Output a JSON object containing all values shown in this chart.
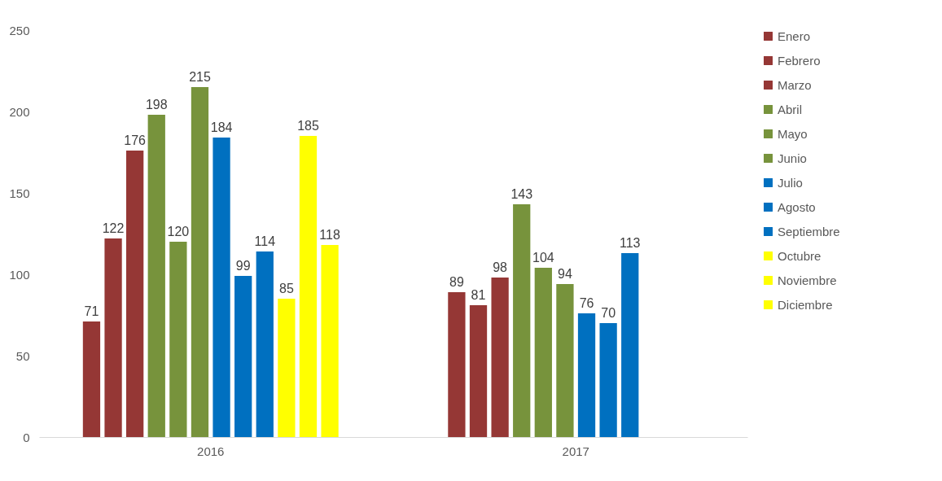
{
  "chart_data": {
    "type": "bar",
    "categories": [
      "2016",
      "2017"
    ],
    "series": [
      {
        "name": "Enero",
        "color": "#953735",
        "values": [
          71,
          89
        ]
      },
      {
        "name": "Febrero",
        "color": "#953735",
        "values": [
          122,
          81
        ]
      },
      {
        "name": "Marzo",
        "color": "#953735",
        "values": [
          176,
          98
        ]
      },
      {
        "name": "Abril",
        "color": "#77933c",
        "values": [
          198,
          143
        ]
      },
      {
        "name": "Mayo",
        "color": "#77933c",
        "values": [
          120,
          104
        ]
      },
      {
        "name": "Junio",
        "color": "#77933c",
        "values": [
          215,
          94
        ]
      },
      {
        "name": "Julio",
        "color": "#0070c0",
        "values": [
          184,
          76
        ]
      },
      {
        "name": "Agosto",
        "color": "#0070c0",
        "values": [
          99,
          70
        ]
      },
      {
        "name": "Septiembre",
        "color": "#0070c0",
        "values": [
          114,
          113
        ]
      },
      {
        "name": "Octubre",
        "color": "#ffff00",
        "values": [
          85,
          null
        ]
      },
      {
        "name": "Noviembre",
        "color": "#ffff00",
        "values": [
          185,
          null
        ]
      },
      {
        "name": "Diciembre",
        "color": "#ffff00",
        "values": [
          118,
          null
        ]
      }
    ],
    "ylim": [
      0,
      250
    ],
    "yticks": [
      0,
      50,
      100,
      150,
      200,
      250
    ],
    "data_labels": true,
    "legend": "right"
  }
}
